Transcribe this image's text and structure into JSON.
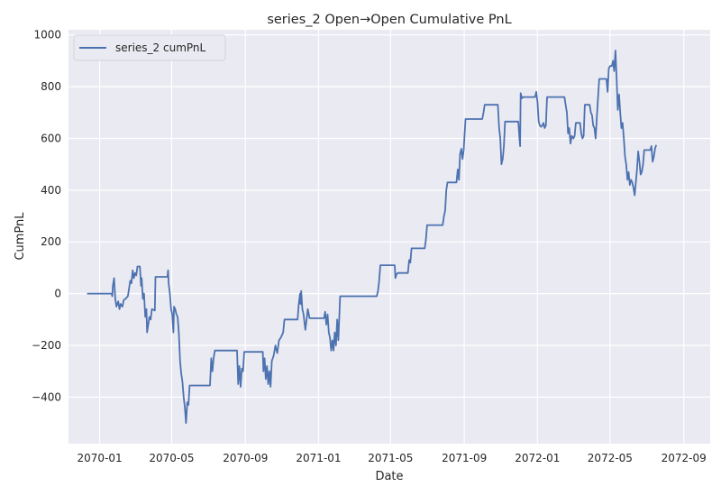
{
  "chart_data": {
    "type": "line",
    "title": "series_2 Open→Open Cumulative PnL",
    "xlabel": "Date",
    "ylabel": "CumPnL",
    "x_is_date": true,
    "xlim": [
      "2069-11-10",
      "2072-10-15"
    ],
    "ylim": [
      -580,
      1020
    ],
    "x_ticks": [
      {
        "value": "2070-01-01",
        "label": "2070-01"
      },
      {
        "value": "2070-05-01",
        "label": "2070-05"
      },
      {
        "value": "2070-09-01",
        "label": "2070-09"
      },
      {
        "value": "2071-01-01",
        "label": "2071-01"
      },
      {
        "value": "2071-05-01",
        "label": "2071-05"
      },
      {
        "value": "2071-09-01",
        "label": "2071-09"
      },
      {
        "value": "2072-01-01",
        "label": "2072-01"
      },
      {
        "value": "2072-05-01",
        "label": "2072-05"
      },
      {
        "value": "2072-09-01",
        "label": "2072-09"
      }
    ],
    "y_ticks": [
      {
        "value": 1000,
        "label": "1000"
      },
      {
        "value": 800,
        "label": "800"
      },
      {
        "value": 600,
        "label": "600"
      },
      {
        "value": 400,
        "label": "400"
      },
      {
        "value": 200,
        "label": "200"
      },
      {
        "value": 0,
        "label": "0"
      },
      {
        "value": -200,
        "label": "−200"
      },
      {
        "value": -400,
        "label": "−400"
      }
    ],
    "grid": true,
    "legend_position": "top-left",
    "colors": {
      "background": "#eaeaf2",
      "grid": "#ffffff",
      "line": "#4c72b0"
    },
    "series": [
      {
        "name": "series_2 cumPnL",
        "points": [
          [
            "2069-12-11",
            0
          ],
          [
            "2070-01-21",
            0
          ],
          [
            "2070-01-22",
            -10
          ],
          [
            "2070-01-23",
            30
          ],
          [
            "2070-01-25",
            60
          ],
          [
            "2070-01-27",
            -20
          ],
          [
            "2070-01-29",
            -50
          ],
          [
            "2070-02-01",
            -30
          ],
          [
            "2070-02-03",
            -60
          ],
          [
            "2070-02-05",
            -40
          ],
          [
            "2070-02-08",
            -50
          ],
          [
            "2070-02-10",
            -25
          ],
          [
            "2070-02-13",
            -20
          ],
          [
            "2070-02-17",
            -10
          ],
          [
            "2070-02-19",
            20
          ],
          [
            "2070-02-21",
            50
          ],
          [
            "2070-02-23",
            40
          ],
          [
            "2070-02-25",
            90
          ],
          [
            "2070-02-27",
            60
          ],
          [
            "2070-03-01",
            80
          ],
          [
            "2070-03-03",
            70
          ],
          [
            "2070-03-05",
            105
          ],
          [
            "2070-03-09",
            105
          ],
          [
            "2070-03-11",
            30
          ],
          [
            "2070-03-12",
            60
          ],
          [
            "2070-03-14",
            -20
          ],
          [
            "2070-03-16",
            0
          ],
          [
            "2070-03-18",
            -90
          ],
          [
            "2070-03-20",
            -60
          ],
          [
            "2070-03-21",
            -150
          ],
          [
            "2070-03-23",
            -120
          ],
          [
            "2070-03-25",
            -90
          ],
          [
            "2070-03-27",
            -100
          ],
          [
            "2070-03-29",
            -60
          ],
          [
            "2070-04-03",
            -65
          ],
          [
            "2070-04-04",
            65
          ],
          [
            "2070-04-24",
            65
          ],
          [
            "2070-04-25",
            90
          ],
          [
            "2070-04-26",
            40
          ],
          [
            "2070-04-28",
            0
          ],
          [
            "2070-04-30",
            -60
          ],
          [
            "2070-05-02",
            -80
          ],
          [
            "2070-05-04",
            -150
          ],
          [
            "2070-05-05",
            -50
          ],
          [
            "2070-05-07",
            -60
          ],
          [
            "2070-05-09",
            -80
          ],
          [
            "2070-05-11",
            -90
          ],
          [
            "2070-05-13",
            -150
          ],
          [
            "2070-05-15",
            -260
          ],
          [
            "2070-05-17",
            -310
          ],
          [
            "2070-05-19",
            -340
          ],
          [
            "2070-05-21",
            -400
          ],
          [
            "2070-05-23",
            -440
          ],
          [
            "2070-05-25",
            -500
          ],
          [
            "2070-05-27",
            -420
          ],
          [
            "2070-05-29",
            -430
          ],
          [
            "2070-05-31",
            -355
          ],
          [
            "2070-07-04",
            -355
          ],
          [
            "2070-07-06",
            -250
          ],
          [
            "2070-07-08",
            -300
          ],
          [
            "2070-07-10",
            -250
          ],
          [
            "2070-07-12",
            -220
          ],
          [
            "2070-08-18",
            -220
          ],
          [
            "2070-08-20",
            -350
          ],
          [
            "2070-08-22",
            -280
          ],
          [
            "2070-08-24",
            -360
          ],
          [
            "2070-08-26",
            -290
          ],
          [
            "2070-08-28",
            -300
          ],
          [
            "2070-08-30",
            -225
          ],
          [
            "2070-09-30",
            -225
          ],
          [
            "2070-10-01",
            -300
          ],
          [
            "2070-10-03",
            -250
          ],
          [
            "2070-10-05",
            -330
          ],
          [
            "2070-10-07",
            -280
          ],
          [
            "2070-10-09",
            -350
          ],
          [
            "2070-10-11",
            -300
          ],
          [
            "2070-10-13",
            -360
          ],
          [
            "2070-10-15",
            -260
          ],
          [
            "2070-10-18",
            -240
          ],
          [
            "2070-10-21",
            -200
          ],
          [
            "2070-10-24",
            -230
          ],
          [
            "2070-10-27",
            -180
          ],
          [
            "2070-10-30",
            -170
          ],
          [
            "2070-11-03",
            -150
          ],
          [
            "2070-11-05",
            -100
          ],
          [
            "2070-11-27",
            -100
          ],
          [
            "2070-11-29",
            -40
          ],
          [
            "2070-12-01",
            0
          ],
          [
            "2070-12-02",
            -40
          ],
          [
            "2070-12-03",
            10
          ],
          [
            "2070-12-05",
            -60
          ],
          [
            "2070-12-07",
            -80
          ],
          [
            "2070-12-10",
            -140
          ],
          [
            "2070-12-12",
            -100
          ],
          [
            "2070-12-14",
            -60
          ],
          [
            "2070-12-17",
            -95
          ],
          [
            "2071-01-10",
            -95
          ],
          [
            "2071-01-12",
            -70
          ],
          [
            "2071-01-14",
            -120
          ],
          [
            "2071-01-16",
            -80
          ],
          [
            "2071-01-18",
            -150
          ],
          [
            "2071-01-20",
            -170
          ],
          [
            "2071-01-22",
            -220
          ],
          [
            "2071-01-24",
            -180
          ],
          [
            "2071-01-26",
            -220
          ],
          [
            "2071-01-28",
            -150
          ],
          [
            "2071-01-30",
            -200
          ],
          [
            "2071-02-01",
            -100
          ],
          [
            "2071-02-03",
            -180
          ],
          [
            "2071-02-06",
            -10
          ],
          [
            "2071-04-08",
            -10
          ],
          [
            "2071-04-10",
            10
          ],
          [
            "2071-04-12",
            50
          ],
          [
            "2071-04-14",
            110
          ],
          [
            "2071-05-08",
            110
          ],
          [
            "2071-05-09",
            60
          ],
          [
            "2071-05-11",
            75
          ],
          [
            "2071-05-13",
            80
          ],
          [
            "2071-05-30",
            80
          ],
          [
            "2071-06-01",
            130
          ],
          [
            "2071-06-03",
            120
          ],
          [
            "2071-06-05",
            175
          ],
          [
            "2071-06-27",
            175
          ],
          [
            "2071-06-29",
            210
          ],
          [
            "2071-07-01",
            265
          ],
          [
            "2071-07-27",
            265
          ],
          [
            "2071-07-29",
            300
          ],
          [
            "2071-07-31",
            320
          ],
          [
            "2071-08-02",
            400
          ],
          [
            "2071-08-04",
            430
          ],
          [
            "2071-08-19",
            430
          ],
          [
            "2071-08-21",
            480
          ],
          [
            "2071-08-23",
            440
          ],
          [
            "2071-08-25",
            540
          ],
          [
            "2071-08-27",
            560
          ],
          [
            "2071-08-29",
            520
          ],
          [
            "2071-08-31",
            555
          ],
          [
            "2071-09-03",
            675
          ],
          [
            "2071-10-01",
            675
          ],
          [
            "2071-10-03",
            700
          ],
          [
            "2071-10-05",
            730
          ],
          [
            "2071-10-27",
            730
          ],
          [
            "2071-10-29",
            640
          ],
          [
            "2071-10-31",
            600
          ],
          [
            "2071-11-02",
            500
          ],
          [
            "2071-11-04",
            520
          ],
          [
            "2071-11-06",
            570
          ],
          [
            "2071-11-08",
            665
          ],
          [
            "2071-11-30",
            665
          ],
          [
            "2071-12-02",
            600
          ],
          [
            "2071-12-03",
            570
          ],
          [
            "2071-12-04",
            775
          ],
          [
            "2071-12-06",
            755
          ],
          [
            "2071-12-08",
            760
          ],
          [
            "2071-12-28",
            760
          ],
          [
            "2071-12-30",
            780
          ],
          [
            "2072-01-01",
            740
          ],
          [
            "2072-01-03",
            665
          ],
          [
            "2072-01-05",
            650
          ],
          [
            "2072-01-07",
            645
          ],
          [
            "2072-01-09",
            650
          ],
          [
            "2072-01-11",
            660
          ],
          [
            "2072-01-13",
            640
          ],
          [
            "2072-01-15",
            650
          ],
          [
            "2072-01-17",
            760
          ],
          [
            "2072-02-15",
            760
          ],
          [
            "2072-02-17",
            730
          ],
          [
            "2072-02-19",
            700
          ],
          [
            "2072-02-21",
            620
          ],
          [
            "2072-02-23",
            640
          ],
          [
            "2072-02-25",
            580
          ],
          [
            "2072-02-27",
            610
          ],
          [
            "2072-03-01",
            600
          ],
          [
            "2072-03-03",
            610
          ],
          [
            "2072-03-05",
            660
          ],
          [
            "2072-03-12",
            660
          ],
          [
            "2072-03-14",
            620
          ],
          [
            "2072-03-16",
            600
          ],
          [
            "2072-03-18",
            610
          ],
          [
            "2072-03-20",
            730
          ],
          [
            "2072-03-28",
            730
          ],
          [
            "2072-03-30",
            700
          ],
          [
            "2072-04-01",
            690
          ],
          [
            "2072-04-03",
            650
          ],
          [
            "2072-04-05",
            640
          ],
          [
            "2072-04-07",
            600
          ],
          [
            "2072-04-09",
            680
          ],
          [
            "2072-04-11",
            760
          ],
          [
            "2072-04-13",
            830
          ],
          [
            "2072-04-25",
            830
          ],
          [
            "2072-04-27",
            780
          ],
          [
            "2072-04-29",
            870
          ],
          [
            "2072-05-01",
            880
          ],
          [
            "2072-05-04",
            880
          ],
          [
            "2072-05-06",
            900
          ],
          [
            "2072-05-08",
            860
          ],
          [
            "2072-05-10",
            940
          ],
          [
            "2072-05-12",
            830
          ],
          [
            "2072-05-14",
            710
          ],
          [
            "2072-05-16",
            770
          ],
          [
            "2072-05-18",
            700
          ],
          [
            "2072-05-20",
            640
          ],
          [
            "2072-05-22",
            660
          ],
          [
            "2072-05-24",
            600
          ],
          [
            "2072-05-26",
            530
          ],
          [
            "2072-05-28",
            500
          ],
          [
            "2072-05-30",
            440
          ],
          [
            "2072-06-01",
            470
          ],
          [
            "2072-06-03",
            420
          ],
          [
            "2072-06-05",
            440
          ],
          [
            "2072-06-07",
            430
          ],
          [
            "2072-06-09",
            410
          ],
          [
            "2072-06-11",
            380
          ],
          [
            "2072-06-13",
            430
          ],
          [
            "2072-06-15",
            480
          ],
          [
            "2072-06-17",
            550
          ],
          [
            "2072-06-19",
            510
          ],
          [
            "2072-06-21",
            460
          ],
          [
            "2072-06-23",
            470
          ],
          [
            "2072-06-25",
            500
          ],
          [
            "2072-06-27",
            555
          ],
          [
            "2072-07-07",
            555
          ],
          [
            "2072-07-09",
            570
          ],
          [
            "2072-07-11",
            510
          ],
          [
            "2072-07-13",
            530
          ],
          [
            "2072-07-15",
            560
          ],
          [
            "2072-07-17",
            575
          ]
        ]
      }
    ]
  }
}
